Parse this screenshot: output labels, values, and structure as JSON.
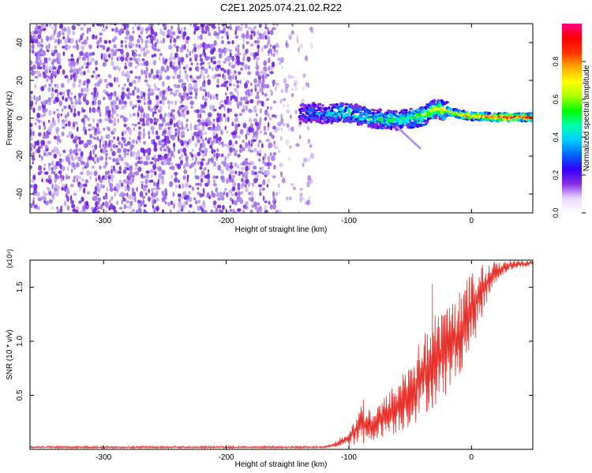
{
  "figure": {
    "title": "C2E1.2025.074.21.02.R22"
  },
  "chart_data": [
    {
      "type": "heatmap",
      "title": "C2E1.2025.074.21.02.R22",
      "xlabel": "Height of straight line (km)",
      "ylabel": "Frequency (Hz)",
      "xlim": [
        -360,
        50
      ],
      "ylim": [
        -50,
        50
      ],
      "xticks": [
        -300,
        -200,
        -100,
        0
      ],
      "xtick_labels": [
        "-300",
        "-200",
        "-100",
        "0"
      ],
      "yticks": [
        40,
        20,
        0,
        -20,
        -40
      ],
      "ytick_labels": [
        "40",
        "20",
        "0",
        "-20",
        "-40"
      ],
      "noise_region_x": [
        -360,
        -130
      ],
      "noise_level": 0.12,
      "ridge": {
        "description": "signal frequency ridge",
        "x": [
          -140,
          -130,
          -120,
          -110,
          -100,
          -90,
          -80,
          -70,
          -60,
          -50,
          -40,
          -30,
          -20,
          -10,
          0,
          10,
          20,
          30,
          40,
          50
        ],
        "freq": [
          2,
          3,
          2,
          3,
          3,
          1,
          0,
          -1,
          -1,
          0,
          1,
          5,
          4,
          2,
          1,
          1,
          0.5,
          0.5,
          0.5,
          0.5
        ],
        "amplitude": [
          0.25,
          0.3,
          0.35,
          0.4,
          0.4,
          0.45,
          0.45,
          0.45,
          0.5,
          0.5,
          0.55,
          0.65,
          0.7,
          0.75,
          0.8,
          0.85,
          0.9,
          0.95,
          0.97,
          1.0
        ]
      },
      "colorbar": {
        "label": "Normalized spectral amplitude",
        "range": [
          0,
          1
        ],
        "ticks": [
          0.0,
          0.2,
          0.4,
          0.6,
          0.8
        ],
        "tick_labels": [
          "0.0",
          "0.2",
          "0.4",
          "0.6",
          "0.8"
        ],
        "colors": [
          "#ffffff",
          "#e8d8ff",
          "#8a2be2",
          "#3300ff",
          "#0066ff",
          "#00ccff",
          "#00ffaa",
          "#00ff00",
          "#aaff00",
          "#ffff00",
          "#ffaa00",
          "#ff3300",
          "#ff0000",
          "#ff0080"
        ]
      }
    },
    {
      "type": "line",
      "xlabel": "Height of straight line (km)",
      "ylabel": "SNR (10 * v/v)",
      "multiplier": "(x10⁴)",
      "xlim": [
        -360,
        50
      ],
      "ylim": [
        0,
        1.75
      ],
      "xticks": [
        -300,
        -200,
        -100,
        0
      ],
      "xtick_labels": [
        "-300",
        "-200",
        "-100",
        "0"
      ],
      "yticks": [
        0.5,
        1.0,
        1.5
      ],
      "ytick_labels": [
        "0.5",
        "1.0",
        "1.5"
      ],
      "color": "#e8302a",
      "envelope": {
        "x": [
          -360,
          -120,
          -110,
          -100,
          -90,
          -80,
          -70,
          -60,
          -50,
          -40,
          -30,
          -20,
          -10,
          0,
          10,
          20,
          30,
          40,
          50
        ],
        "low": [
          0.01,
          0.01,
          0.02,
          0.03,
          0.05,
          0.08,
          0.12,
          0.15,
          0.2,
          0.3,
          0.4,
          0.5,
          0.7,
          0.9,
          1.3,
          1.55,
          1.65,
          1.68,
          1.7
        ],
        "high": [
          0.03,
          0.03,
          0.08,
          0.18,
          0.42,
          0.38,
          0.5,
          0.65,
          0.85,
          1.05,
          1.25,
          1.35,
          1.45,
          1.65,
          1.72,
          1.74,
          1.75,
          1.75,
          1.75
        ]
      },
      "spikes": [
        {
          "x": -88,
          "y": 0.46
        },
        {
          "x": -32,
          "y": 1.53
        },
        {
          "x": -10,
          "y": 1.45
        },
        {
          "x": 8,
          "y": 1.68
        }
      ]
    }
  ]
}
